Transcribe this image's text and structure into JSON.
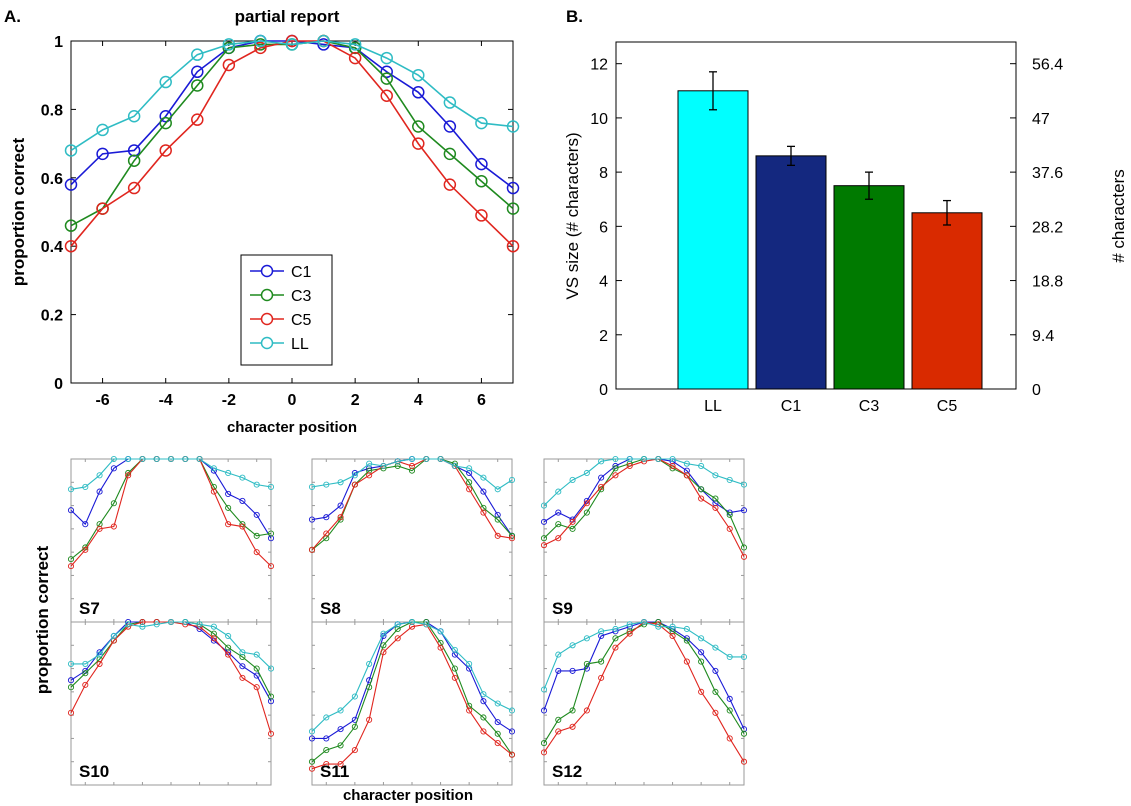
{
  "figure": {
    "panel_a_label": "A.",
    "panel_b_label": "B."
  },
  "colors": {
    "C1": "#1a1ad6",
    "C3": "#1f8a1f",
    "C5": "#e0261f",
    "LL": "#2fbcc4",
    "bar_LL": "#00ffff",
    "bar_C1": "#14287f",
    "bar_C3": "#007a00",
    "bar_C5": "#d92a00"
  },
  "chart_data": [
    {
      "id": "A",
      "type": "line",
      "title": "partial report",
      "xlabel": "character position",
      "ylabel": "proportion correct",
      "xlim": [
        -7,
        7
      ],
      "ylim": [
        0,
        1
      ],
      "xticks": [
        -6,
        -4,
        -2,
        0,
        2,
        4,
        6
      ],
      "yticks": [
        0,
        0.2,
        0.4,
        0.6,
        0.8,
        1
      ],
      "ytick_labels": [
        "0",
        "0.2",
        "0.4",
        "0.6",
        "0.8",
        "1"
      ],
      "legend": "center-lower",
      "x": [
        -7,
        -6,
        -5,
        -4,
        -3,
        -2,
        -1,
        0,
        1,
        2,
        3,
        4,
        5,
        6,
        7
      ],
      "series": [
        {
          "name": "C1",
          "values": [
            0.58,
            0.67,
            0.68,
            0.78,
            0.91,
            0.98,
            1.0,
            1.0,
            0.99,
            0.98,
            0.91,
            0.85,
            0.75,
            0.64,
            0.57
          ]
        },
        {
          "name": "C3",
          "values": [
            0.46,
            0.51,
            0.65,
            0.76,
            0.87,
            0.98,
            0.99,
            0.99,
            1.0,
            0.98,
            0.89,
            0.75,
            0.67,
            0.59,
            0.51
          ]
        },
        {
          "name": "C5",
          "values": [
            0.4,
            0.51,
            0.57,
            0.68,
            0.77,
            0.93,
            0.98,
            1.0,
            1.0,
            0.95,
            0.84,
            0.7,
            0.58,
            0.49,
            0.4
          ]
        },
        {
          "name": "LL",
          "values": [
            0.68,
            0.74,
            0.78,
            0.88,
            0.96,
            0.99,
            1.0,
            0.99,
            1.0,
            0.99,
            0.95,
            0.9,
            0.82,
            0.76,
            0.75
          ]
        }
      ]
    },
    {
      "id": "B",
      "type": "bar",
      "xlabel": "",
      "ylabel": "VS size (# characters)",
      "ylabel_right": "# characters",
      "categories": [
        "LL",
        "C1",
        "C3",
        "C5"
      ],
      "values": [
        11.0,
        8.6,
        7.5,
        6.5
      ],
      "errors": [
        0.7,
        0.35,
        0.5,
        0.45
      ],
      "ylim": [
        0,
        12.8
      ],
      "yticks": [
        0,
        2,
        4,
        6,
        8,
        10,
        12
      ],
      "right_ticks": [
        0,
        2,
        4,
        6,
        8,
        10,
        12
      ],
      "right_tick_labels": [
        "0",
        "9.4",
        "18.8",
        "28.2",
        "37.6",
        "47",
        "56.4"
      ]
    },
    {
      "id": "subjects",
      "type": "line",
      "xlabel": "character position",
      "ylabel": "proportion correct",
      "xlim": [
        -7,
        7
      ],
      "ylim": [
        0.3,
        1
      ],
      "x": [
        -7,
        -6,
        -5,
        -4,
        -3,
        -2,
        -1,
        0,
        1,
        2,
        3,
        4,
        5,
        6,
        7
      ],
      "panels": [
        {
          "label": "S7",
          "series": [
            {
              "name": "C1",
              "values": [
                0.78,
                0.72,
                0.86,
                0.96,
                1.0,
                1.0,
                1.0,
                1.0,
                1.0,
                1.0,
                0.95,
                0.85,
                0.82,
                0.76,
                0.66
              ]
            },
            {
              "name": "C3",
              "values": [
                0.57,
                0.62,
                0.72,
                0.81,
                0.94,
                1.0,
                1.0,
                1.0,
                1.0,
                1.0,
                0.88,
                0.79,
                0.72,
                0.67,
                0.68
              ]
            },
            {
              "name": "C5",
              "values": [
                0.54,
                0.61,
                0.7,
                0.71,
                0.93,
                1.0,
                1.0,
                1.0,
                1.0,
                1.0,
                0.86,
                0.72,
                0.71,
                0.6,
                0.54
              ]
            },
            {
              "name": "LL",
              "values": [
                0.87,
                0.88,
                0.93,
                1.0,
                1.0,
                1.0,
                1.0,
                1.0,
                1.0,
                1.0,
                0.96,
                0.94,
                0.92,
                0.89,
                0.88
              ]
            }
          ]
        },
        {
          "label": "S8",
          "series": [
            {
              "name": "C1",
              "values": [
                0.74,
                0.75,
                0.8,
                0.94,
                0.96,
                0.97,
                0.99,
                1.0,
                1.0,
                1.0,
                0.97,
                0.94,
                0.86,
                0.76,
                0.67
              ]
            },
            {
              "name": "C3",
              "values": [
                0.61,
                0.66,
                0.74,
                0.89,
                0.95,
                0.96,
                0.97,
                0.95,
                1.0,
                1.0,
                0.98,
                0.9,
                0.79,
                0.74,
                0.67
              ]
            },
            {
              "name": "C5",
              "values": [
                0.61,
                0.68,
                0.75,
                0.89,
                0.93,
                0.97,
                0.99,
                0.97,
                1.0,
                1.0,
                0.97,
                0.87,
                0.77,
                0.67,
                0.66
              ]
            },
            {
              "name": "LL",
              "values": [
                0.88,
                0.89,
                0.9,
                0.93,
                0.98,
                0.97,
                0.99,
                1.0,
                1.0,
                1.0,
                0.97,
                0.96,
                0.92,
                0.87,
                0.91
              ]
            }
          ]
        },
        {
          "label": "S9",
          "series": [
            {
              "name": "C1",
              "values": [
                0.73,
                0.77,
                0.74,
                0.82,
                0.92,
                0.97,
                1.0,
                1.0,
                1.0,
                0.99,
                0.95,
                0.87,
                0.81,
                0.77,
                0.78
              ]
            },
            {
              "name": "C3",
              "values": [
                0.66,
                0.72,
                0.7,
                0.77,
                0.87,
                0.96,
                0.98,
                1.0,
                1.0,
                0.96,
                0.93,
                0.87,
                0.83,
                0.76,
                0.62
              ]
            },
            {
              "name": "C5",
              "values": [
                0.63,
                0.66,
                0.73,
                0.81,
                0.88,
                0.93,
                0.97,
                0.99,
                1.0,
                0.97,
                0.93,
                0.83,
                0.79,
                0.7,
                0.58
              ]
            },
            {
              "name": "LL",
              "values": [
                0.8,
                0.86,
                0.91,
                0.94,
                0.99,
                1.0,
                1.0,
                1.0,
                1.0,
                1.0,
                0.98,
                0.97,
                0.93,
                0.91,
                0.89
              ]
            }
          ]
        },
        {
          "label": "S10",
          "series": [
            {
              "name": "C1",
              "values": [
                0.75,
                0.79,
                0.87,
                0.94,
                1.0,
                1.0,
                1.0,
                1.0,
                1.0,
                0.97,
                0.92,
                0.87,
                0.81,
                0.77,
                0.66
              ]
            },
            {
              "name": "C3",
              "values": [
                0.72,
                0.78,
                0.84,
                0.92,
                0.99,
                1.0,
                1.0,
                1.0,
                1.0,
                0.99,
                0.95,
                0.89,
                0.85,
                0.8,
                0.68
              ]
            },
            {
              "name": "C5",
              "values": [
                0.61,
                0.73,
                0.82,
                0.92,
                0.98,
                1.0,
                1.0,
                1.0,
                0.99,
                0.98,
                0.93,
                0.86,
                0.76,
                0.72,
                0.52
              ]
            },
            {
              "name": "LL",
              "values": [
                0.82,
                0.82,
                0.86,
                0.94,
                0.99,
                0.98,
                0.99,
                1.0,
                1.0,
                0.99,
                0.98,
                0.94,
                0.87,
                0.86,
                0.8
              ]
            }
          ]
        },
        {
          "label": "S11",
          "series": [
            {
              "name": "C1",
              "values": [
                0.5,
                0.5,
                0.54,
                0.58,
                0.75,
                0.94,
                0.99,
                1.0,
                1.0,
                0.96,
                0.86,
                0.8,
                0.66,
                0.57,
                0.53
              ]
            },
            {
              "name": "C3",
              "values": [
                0.4,
                0.45,
                0.47,
                0.55,
                0.72,
                0.9,
                0.97,
                1.0,
                1.0,
                0.91,
                0.8,
                0.64,
                0.59,
                0.52,
                0.43
              ]
            },
            {
              "name": "C5",
              "values": [
                0.37,
                0.39,
                0.39,
                0.45,
                0.58,
                0.87,
                0.93,
                0.98,
                0.99,
                0.89,
                0.76,
                0.62,
                0.53,
                0.48,
                0.43
              ]
            },
            {
              "name": "LL",
              "values": [
                0.53,
                0.59,
                0.62,
                0.68,
                0.82,
                0.95,
                0.99,
                1.0,
                0.99,
                0.96,
                0.88,
                0.82,
                0.69,
                0.65,
                0.62
              ]
            }
          ]
        },
        {
          "label": "S12",
          "series": [
            {
              "name": "C1",
              "values": [
                0.62,
                0.79,
                0.79,
                0.8,
                0.94,
                0.96,
                0.98,
                1.0,
                1.0,
                0.97,
                0.93,
                0.87,
                0.79,
                0.67,
                0.54
              ]
            },
            {
              "name": "C3",
              "values": [
                0.48,
                0.58,
                0.62,
                0.82,
                0.83,
                0.93,
                0.96,
                0.99,
                1.0,
                0.96,
                0.92,
                0.83,
                0.7,
                0.62,
                0.52
              ]
            },
            {
              "name": "C5",
              "values": [
                0.44,
                0.53,
                0.55,
                0.62,
                0.76,
                0.89,
                0.95,
                1.0,
                0.99,
                0.94,
                0.83,
                0.7,
                0.61,
                0.5,
                0.4
              ]
            },
            {
              "name": "LL",
              "values": [
                0.71,
                0.86,
                0.9,
                0.93,
                0.96,
                0.97,
                0.99,
                1.0,
                0.98,
                0.98,
                0.97,
                0.93,
                0.89,
                0.85,
                0.85
              ]
            }
          ]
        }
      ]
    }
  ]
}
